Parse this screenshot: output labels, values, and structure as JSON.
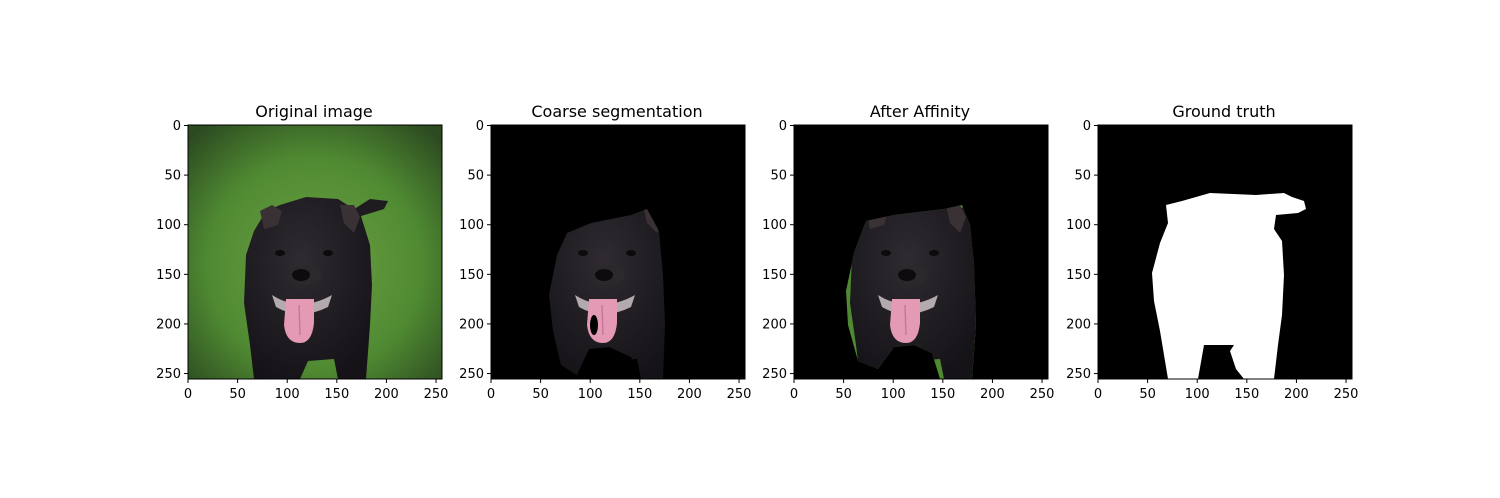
{
  "figure": {
    "panels": [
      {
        "id": "original",
        "title": "Original image"
      },
      {
        "id": "coarse",
        "title": "Coarse segmentation"
      },
      {
        "id": "affinity",
        "title": "After Affinity"
      },
      {
        "id": "ground-truth",
        "title": "Ground truth"
      }
    ],
    "axes": {
      "x_ticks": [
        "0",
        "50",
        "100",
        "150",
        "200",
        "250"
      ],
      "y_ticks": [
        "0",
        "50",
        "100",
        "150",
        "200",
        "250"
      ]
    },
    "colors": {
      "grass": "#4f8a32",
      "dog_fur": "#1c1a1e",
      "tongue": "#e49ab4",
      "background_black": "#000000",
      "mask_white": "#ffffff"
    }
  }
}
